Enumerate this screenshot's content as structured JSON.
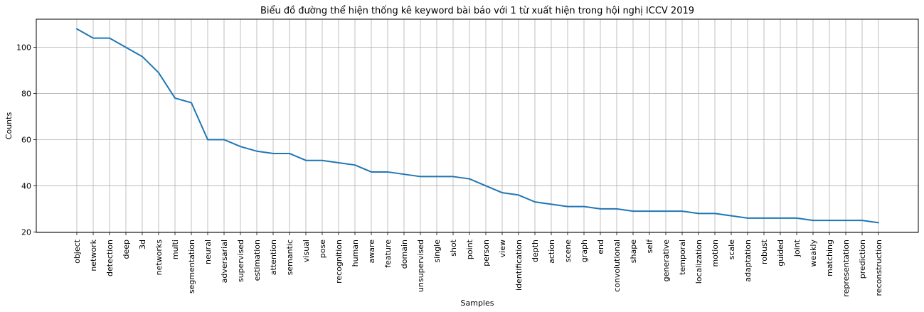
{
  "chart_data": {
    "type": "line",
    "title": "Biểu đồ đường thể hiện thống kê keyword bài báo với 1 từ xuất hiện trong hội nghị ICCV 2019",
    "xlabel": "Samples",
    "ylabel": "Counts",
    "categories": [
      "object",
      "network",
      "detection",
      "deep",
      "3d",
      "networks",
      "multi",
      "segmentation",
      "neural",
      "adversarial",
      "supervised",
      "estimation",
      "attention",
      "semantic",
      "visual",
      "pose",
      "recognition",
      "human",
      "aware",
      "feature",
      "domain",
      "unsupervised",
      "single",
      "shot",
      "point",
      "person",
      "view",
      "identification",
      "depth",
      "action",
      "scene",
      "graph",
      "end",
      "convolutional",
      "shape",
      "self",
      "generative",
      "temporal",
      "localization",
      "motion",
      "scale",
      "adaptation",
      "robust",
      "guided",
      "joint",
      "weakly",
      "matching",
      "representation",
      "prediction",
      "reconstruction"
    ],
    "values": [
      108,
      104,
      104,
      100,
      96,
      89,
      78,
      76,
      60,
      60,
      57,
      55,
      54,
      54,
      51,
      51,
      50,
      49,
      46,
      46,
      45,
      44,
      44,
      44,
      43,
      40,
      37,
      36,
      33,
      32,
      31,
      31,
      30,
      30,
      29,
      29,
      29,
      29,
      28,
      28,
      27,
      26,
      26,
      26,
      26,
      25,
      25,
      25,
      25,
      24
    ],
    "yticks": [
      20,
      40,
      60,
      80,
      100
    ],
    "ylim": [
      19.8,
      112.2
    ],
    "grid": true,
    "line_color": "#1f77b4"
  }
}
